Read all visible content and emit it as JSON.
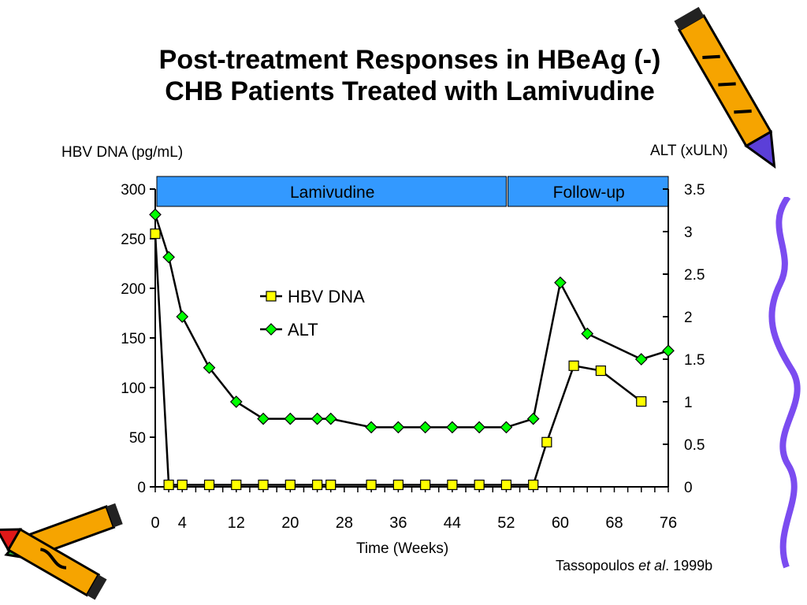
{
  "slide": {
    "title_line1": "Post-treatment Responses in HBeAg (-)",
    "title_line2": "CHB Patients Treated with Lamivudine",
    "citation_author": "Tassopoulos ",
    "citation_etal": "et al",
    "citation_year": ". 1999b"
  },
  "chart_data": {
    "type": "line",
    "title": "",
    "xlabel": "Time (Weeks)",
    "ylabel_left": "HBV DNA (pg/mL)",
    "ylabel_right": "ALT (xULN)",
    "xlim": [
      0,
      76
    ],
    "ylim_left": [
      0,
      300
    ],
    "ylim_right": [
      0,
      3.5
    ],
    "x_ticks": [
      0,
      4,
      12,
      20,
      28,
      36,
      44,
      52,
      60,
      68,
      76
    ],
    "y_ticks_left": [
      0,
      50,
      100,
      150,
      200,
      250,
      300
    ],
    "y_ticks_right": [
      "0",
      "0.5",
      "1",
      "1.5",
      "2",
      "2.5",
      "3",
      "3.5"
    ],
    "grid": false,
    "legend_position": "center-left",
    "phases": [
      {
        "label": "Lamivudine",
        "start": 0,
        "end": 52
      },
      {
        "label": "Follow-up",
        "start": 52,
        "end": 76
      }
    ],
    "series": [
      {
        "name": "HBV DNA",
        "axis": "left",
        "marker": "square",
        "color": "#ffff00",
        "x": [
          0,
          2,
          4,
          8,
          12,
          16,
          20,
          24,
          26,
          32,
          36,
          40,
          44,
          48,
          52,
          56,
          58,
          62,
          66,
          72
        ],
        "y": [
          255,
          2,
          2,
          2,
          2,
          2,
          2,
          2,
          2,
          2,
          2,
          2,
          2,
          2,
          2,
          2,
          45,
          122,
          117,
          86
        ]
      },
      {
        "name": "ALT",
        "axis": "right",
        "marker": "diamond",
        "color": "#00ff00",
        "x": [
          0,
          2,
          4,
          8,
          12,
          16,
          20,
          24,
          26,
          32,
          36,
          40,
          44,
          48,
          52,
          56,
          60,
          64,
          72,
          76
        ],
        "y": [
          3.2,
          2.7,
          2.0,
          1.4,
          1.0,
          0.8,
          0.8,
          0.8,
          0.8,
          0.7,
          0.7,
          0.7,
          0.7,
          0.7,
          0.7,
          0.8,
          2.4,
          1.8,
          1.5,
          1.6
        ]
      }
    ]
  }
}
